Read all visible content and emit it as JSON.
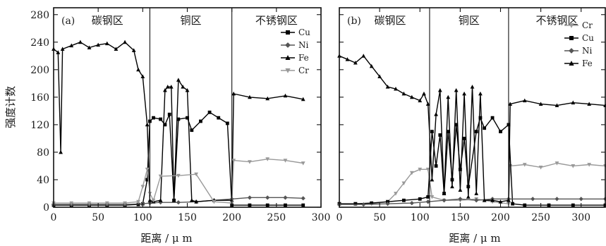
{
  "chart_data": [
    {
      "type": "line",
      "panel_label": "(a)",
      "xlabel": "距离 / μ m",
      "ylabel": "强度计数",
      "xlim": [
        0,
        300
      ],
      "ylim": [
        0,
        290
      ],
      "x_ticks": [
        0,
        50,
        100,
        150,
        200,
        250,
        300
      ],
      "y_ticks": [
        0,
        40,
        80,
        120,
        160,
        200,
        240,
        280
      ],
      "zones": [
        {
          "label": "碳钢区",
          "x_start": 0,
          "x_end": 108
        },
        {
          "label": "铜区",
          "x_start": 108,
          "x_end": 200
        },
        {
          "label": "不锈钢区",
          "x_start": 200,
          "x_end": 300
        }
      ],
      "legend_position": "top-right",
      "series": [
        {
          "name": "Cu",
          "color": "#000000",
          "marker": "square",
          "x": [
            0,
            20,
            40,
            60,
            80,
            95,
            100,
            105,
            108,
            112,
            120,
            125,
            130,
            135,
            140,
            150,
            155,
            165,
            175,
            185,
            195,
            200,
            220,
            240,
            260,
            280
          ],
          "y": [
            3,
            3,
            3,
            3,
            3,
            4,
            5,
            40,
            125,
            130,
            128,
            120,
            135,
            10,
            128,
            130,
            112,
            125,
            138,
            130,
            122,
            3,
            3,
            3,
            3,
            3
          ]
        },
        {
          "name": "Ni",
          "color": "#555555",
          "marker": "diamond",
          "x": [
            0,
            20,
            40,
            60,
            80,
            100,
            108,
            120,
            140,
            160,
            180,
            200,
            220,
            240,
            260,
            280
          ],
          "y": [
            4,
            4,
            4,
            4,
            4,
            5,
            6,
            7,
            7,
            8,
            10,
            12,
            14,
            14,
            14,
            13
          ]
        },
        {
          "name": "Fe",
          "color": "#000000",
          "marker": "triangle-up",
          "x": [
            0,
            5,
            8,
            10,
            20,
            30,
            40,
            50,
            60,
            70,
            80,
            90,
            95,
            100,
            105,
            108,
            112,
            120,
            125,
            128,
            132,
            135,
            140,
            145,
            150,
            155,
            160,
            180,
            200,
            202,
            220,
            240,
            260,
            280
          ],
          "y": [
            230,
            225,
            80,
            230,
            235,
            240,
            232,
            236,
            238,
            230,
            240,
            228,
            200,
            190,
            120,
            10,
            8,
            10,
            170,
            175,
            175,
            10,
            185,
            175,
            170,
            10,
            8,
            10,
            10,
            165,
            160,
            158,
            162,
            157
          ]
        },
        {
          "name": "Cr",
          "color": "#999999",
          "marker": "triangle-down",
          "x": [
            0,
            20,
            40,
            60,
            80,
            95,
            100,
            105,
            108,
            112,
            120,
            140,
            160,
            180,
            200,
            202,
            220,
            240,
            260,
            280
          ],
          "y": [
            6,
            6,
            6,
            6,
            6,
            8,
            30,
            55,
            20,
            10,
            45,
            46,
            48,
            8,
            6,
            68,
            66,
            70,
            68,
            64
          ]
        }
      ]
    },
    {
      "type": "line",
      "panel_label": "(b)",
      "xlabel": "距离 / μ m",
      "ylabel": "",
      "xlim": [
        0,
        330
      ],
      "ylim": [
        0,
        290
      ],
      "x_ticks": [
        0,
        50,
        100,
        150,
        200,
        250,
        300
      ],
      "zones": [
        {
          "label": "碳钢区",
          "x_start": 0,
          "x_end": 112
        },
        {
          "label": "铜区",
          "x_start": 112,
          "x_end": 210
        },
        {
          "label": "不锈钢区",
          "x_start": 210,
          "x_end": 330
        }
      ],
      "legend_position": "top-right",
      "series": [
        {
          "name": "Cr",
          "color": "#999999",
          "marker": "triangle-down",
          "x": [
            0,
            20,
            40,
            60,
            70,
            80,
            90,
            100,
            110,
            115,
            130,
            150,
            170,
            190,
            210,
            212,
            230,
            250,
            270,
            290,
            310,
            330
          ],
          "y": [
            5,
            5,
            5,
            8,
            20,
            35,
            50,
            55,
            55,
            15,
            10,
            10,
            12,
            8,
            5,
            60,
            62,
            58,
            64,
            60,
            62,
            60
          ]
        },
        {
          "name": "Cu",
          "color": "#000000",
          "marker": "square",
          "x": [
            0,
            20,
            40,
            60,
            80,
            100,
            110,
            115,
            120,
            125,
            130,
            135,
            140,
            145,
            150,
            155,
            160,
            170,
            175,
            180,
            190,
            200,
            210,
            215,
            230,
            260,
            290,
            330
          ],
          "y": [
            5,
            5,
            6,
            8,
            10,
            12,
            15,
            110,
            60,
            105,
            20,
            110,
            40,
            120,
            55,
            100,
            30,
            110,
            130,
            115,
            130,
            110,
            120,
            5,
            3,
            3,
            3,
            3
          ]
        },
        {
          "name": "Ni",
          "color": "#555555",
          "marker": "diamond",
          "x": [
            0,
            30,
            60,
            90,
            110,
            130,
            150,
            170,
            190,
            210,
            240,
            270,
            300,
            330
          ],
          "y": [
            4,
            4,
            5,
            6,
            8,
            10,
            12,
            10,
            12,
            12,
            12,
            12,
            12,
            12
          ]
        },
        {
          "name": "Fe",
          "color": "#000000",
          "marker": "triangle-up",
          "x": [
            0,
            10,
            20,
            30,
            40,
            50,
            60,
            70,
            80,
            90,
            100,
            105,
            110,
            115,
            120,
            125,
            130,
            135,
            140,
            145,
            150,
            155,
            160,
            165,
            170,
            175,
            180,
            190,
            200,
            210,
            212,
            230,
            250,
            270,
            290,
            310,
            330
          ],
          "y": [
            220,
            215,
            210,
            220,
            205,
            190,
            175,
            172,
            165,
            160,
            155,
            165,
            150,
            40,
            135,
            170,
            20,
            160,
            30,
            170,
            25,
            165,
            15,
            175,
            20,
            165,
            10,
            10,
            8,
            10,
            150,
            155,
            150,
            148,
            152,
            150,
            148
          ]
        }
      ]
    }
  ]
}
